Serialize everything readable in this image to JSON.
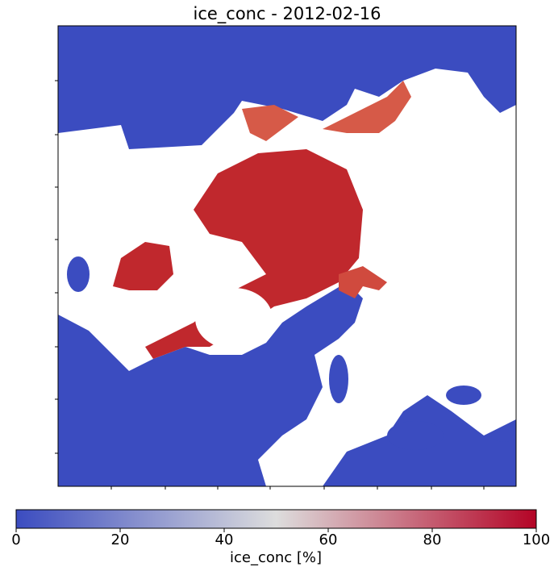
{
  "title": "ice_conc - 2012-02-16",
  "colorbar": {
    "label": "ice_conc [%]",
    "lim": [
      0,
      100
    ],
    "ticks": [
      0,
      20,
      40,
      60,
      80,
      100
    ],
    "colormap": [
      "#3b4cc0",
      "#dddddd",
      "#b40426"
    ]
  }
}
